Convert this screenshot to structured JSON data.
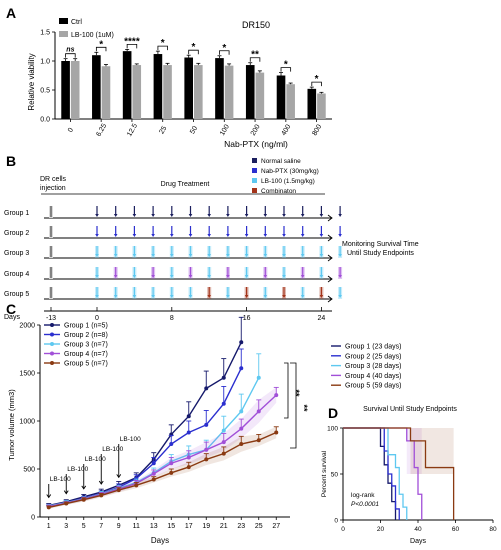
{
  "panels": {
    "A": "A",
    "B": "B",
    "C": "C",
    "D": "D"
  },
  "colors": {
    "ctrl": "#000000",
    "lb100_bar": "#a6a6a6",
    "group1": "#15196b",
    "group2": "#2b2fcf",
    "group3": "#5ec8f0",
    "group4": "#a14fd8",
    "group5": "#8a3a12",
    "normal_saline": "#1b1f5e",
    "nab_ptx": "#2b2fcf",
    "lb100_arrow": "#5ec8f0",
    "combination": "#a3341a"
  },
  "chart_data": [
    {
      "panel": "A",
      "type": "bar",
      "title": "DR150",
      "xlabel": "Nab-PTX (ng/ml)",
      "ylabel": "Relative viability",
      "ylim": [
        0.0,
        1.5
      ],
      "yticks": [
        "0.0",
        "0.5",
        "1.0",
        "1.5"
      ],
      "categories": [
        "0",
        "6.25",
        "12.5",
        "25",
        "50",
        "100",
        "200",
        "400",
        "800"
      ],
      "series": [
        {
          "name": "Ctrl",
          "values": [
            1.0,
            1.1,
            1.17,
            1.12,
            1.06,
            1.05,
            0.93,
            0.75,
            0.52
          ]
        },
        {
          "name": "LB-100 (1uM)",
          "values": [
            1.0,
            0.91,
            0.93,
            0.93,
            0.93,
            0.92,
            0.8,
            0.6,
            0.44
          ]
        }
      ],
      "errors": [
        [
          0.04,
          0.05,
          0.03,
          0.05,
          0.04,
          0.04,
          0.04,
          0.05,
          0.03
        ],
        [
          0.04,
          0.03,
          0.02,
          0.03,
          0.03,
          0.03,
          0.03,
          0.02,
          0.02
        ]
      ],
      "significance": [
        "ns",
        "*",
        "****",
        "*",
        "*",
        "*",
        "**",
        "*",
        "*"
      ],
      "legend_position": "top-left"
    },
    {
      "panel": "C",
      "type": "line",
      "xlabel": "Days",
      "ylabel": "Tumor volume (mm3)",
      "xlim": [
        0,
        28
      ],
      "ylim": [
        0,
        2000
      ],
      "xticks": [
        1,
        3,
        5,
        7,
        9,
        11,
        13,
        15,
        17,
        19,
        21,
        23,
        25,
        27
      ],
      "yticks": [
        0,
        500,
        1000,
        1500,
        2000
      ],
      "series": [
        {
          "name": "Group 1 (n=5)",
          "x": [
            1,
            3,
            5,
            7,
            9,
            11,
            13,
            15,
            17,
            19,
            21,
            23
          ],
          "y": [
            120,
            160,
            210,
            260,
            330,
            410,
            600,
            860,
            1050,
            1340,
            1450,
            1820
          ],
          "err": [
            20,
            20,
            25,
            30,
            40,
            50,
            70,
            100,
            150,
            180,
            200,
            260
          ]
        },
        {
          "name": "Group 2 (n=8)",
          "x": [
            1,
            3,
            5,
            7,
            9,
            11,
            13,
            15,
            17,
            19,
            21,
            23
          ],
          "y": [
            110,
            150,
            195,
            245,
            310,
            400,
            560,
            760,
            880,
            960,
            1180,
            1550
          ],
          "err": [
            15,
            20,
            20,
            25,
            35,
            40,
            60,
            90,
            120,
            150,
            180,
            200
          ]
        },
        {
          "name": "Group 3 (n=7)",
          "x": [
            1,
            3,
            5,
            7,
            9,
            11,
            13,
            15,
            17,
            19,
            21,
            23,
            25
          ],
          "y": [
            115,
            150,
            190,
            240,
            300,
            360,
            460,
            580,
            650,
            700,
            900,
            1100,
            1450
          ],
          "err": [
            15,
            20,
            20,
            25,
            30,
            35,
            50,
            70,
            90,
            100,
            150,
            180,
            250
          ]
        },
        {
          "name": "Group 4 (n=7)",
          "x": [
            1,
            3,
            5,
            7,
            9,
            11,
            13,
            15,
            17,
            19,
            21,
            23,
            25,
            27
          ],
          "y": [
            110,
            145,
            185,
            235,
            290,
            350,
            450,
            560,
            620,
            700,
            780,
            920,
            1100,
            1270
          ],
          "err": [
            15,
            15,
            20,
            20,
            30,
            30,
            40,
            60,
            70,
            80,
            90,
            100,
            120,
            80
          ]
        },
        {
          "name": "Group 5 (n=7)",
          "x": [
            1,
            3,
            5,
            7,
            9,
            11,
            13,
            15,
            17,
            19,
            21,
            23,
            25,
            27
          ],
          "y": [
            100,
            140,
            180,
            225,
            280,
            330,
            390,
            460,
            520,
            600,
            660,
            760,
            800,
            880
          ],
          "err": [
            15,
            15,
            20,
            20,
            25,
            30,
            30,
            40,
            50,
            60,
            70,
            80,
            60,
            60
          ]
        }
      ],
      "arrows": [
        {
          "x": 1,
          "label": "LB-100"
        },
        {
          "x": 3,
          "label": "LB-100"
        },
        {
          "x": 5,
          "label": "LB-100"
        },
        {
          "x": 7,
          "label": "LB-100"
        },
        {
          "x": 9,
          "label": "LB-100"
        }
      ],
      "significance": [
        "**",
        "**"
      ],
      "legend_position": "top-left"
    },
    {
      "panel": "D",
      "type": "line",
      "title": "Survival Until Study Endpoints",
      "xlabel": "Days",
      "ylabel": "Percent survival",
      "xlim": [
        0,
        80
      ],
      "ylim": [
        0,
        100
      ],
      "xticks": [
        0,
        20,
        40,
        60,
        80
      ],
      "yticks": [
        0,
        50,
        100
      ],
      "series": [
        {
          "name": "Group 1 (23 days)",
          "x": [
            0,
            20,
            20,
            22,
            22,
            24,
            24,
            26,
            26,
            28,
            28
          ],
          "y": [
            100,
            100,
            80,
            80,
            60,
            60,
            40,
            40,
            20,
            20,
            0
          ]
        },
        {
          "name": "Group 2 (25 days)",
          "x": [
            0,
            22,
            22,
            24,
            24,
            26,
            26,
            28,
            28,
            30,
            30
          ],
          "y": [
            100,
            100,
            75,
            75,
            50,
            50,
            37,
            37,
            12,
            12,
            0
          ]
        },
        {
          "name": "Group 3 (28 days)",
          "x": [
            0,
            24,
            24,
            28,
            28,
            30,
            30,
            32,
            32,
            34,
            34
          ],
          "y": [
            100,
            100,
            71,
            71,
            57,
            57,
            28,
            28,
            14,
            14,
            0
          ]
        },
        {
          "name": "Group 4 (40 days)",
          "x": [
            0,
            34,
            34,
            38,
            38,
            40,
            40,
            42,
            42
          ],
          "y": [
            100,
            100,
            86,
            86,
            57,
            57,
            28,
            28,
            0
          ]
        },
        {
          "name": "Group 5 (59 days)",
          "x": [
            0,
            36,
            36,
            44,
            44,
            59,
            59
          ],
          "y": [
            100,
            100,
            86,
            86,
            57,
            57,
            0
          ]
        }
      ],
      "annotation_line1": "log-rank",
      "annotation_line2": "P<0.0001",
      "legend_position": "top"
    }
  ],
  "schedule": {
    "header_left_line1": "DR cells",
    "header_left_line2": "injection",
    "header_center": "Drug Treatment",
    "legend": [
      {
        "label": "Normal saline",
        "color_key": "normal_saline"
      },
      {
        "label": "Nab-PTX (30mg/kg)",
        "color_key": "nab_ptx"
      },
      {
        "label": "LB-100 (1.5mg/kg)",
        "color_key": "lb100_arrow"
      },
      {
        "label": "Combinaton",
        "color_key": "combination"
      }
    ],
    "groups": [
      "Group 1",
      "Group 2",
      "Group 3",
      "Group 4",
      "Group 5"
    ],
    "days_label": "Days",
    "day_ticks": [
      "-13",
      "0",
      "8",
      "16",
      "24"
    ],
    "day_values": [
      -13,
      0,
      8,
      16,
      24
    ],
    "treatment_days": [
      0,
      2,
      4,
      6,
      8,
      10,
      12,
      14,
      16,
      18,
      20,
      22,
      24,
      26
    ],
    "right_note_line1": "Monitoring Survival Time",
    "right_note_line2": "Until Study Endpoints"
  }
}
